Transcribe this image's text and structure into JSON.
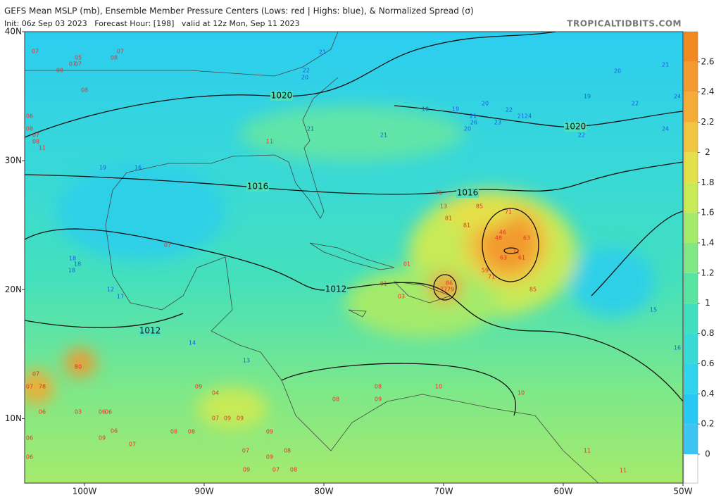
{
  "header": {
    "title": "GEFS Mean MSLP (mb), Ensemble Member Pressure Centers (Lows: red | Highs: blue), & Normalized Spread (σ)",
    "subtitle": "Init: 06z Sep 03 2023   Forecast Hour: [198]   valid at 12z Mon, Sep 11 2023",
    "brand": "TROPICALTIDBITS.COM"
  },
  "map": {
    "lonlim": [
      -105,
      -50
    ],
    "latlim": [
      5,
      40
    ],
    "lon_ticks": [
      {
        "value": -100,
        "label": "100W"
      },
      {
        "value": -90,
        "label": "90W"
      },
      {
        "value": -80,
        "label": "80W"
      },
      {
        "value": -70,
        "label": "70W"
      },
      {
        "value": -60,
        "label": "60W"
      },
      {
        "value": -50,
        "label": "50W"
      }
    ],
    "lat_ticks": [
      {
        "value": 40,
        "label": "40N"
      },
      {
        "value": 30,
        "label": "30N"
      },
      {
        "value": 20,
        "label": "20N"
      },
      {
        "value": 10,
        "label": "10N"
      }
    ],
    "isobar_labels": [
      1020,
      1020,
      1016,
      1016,
      1012,
      1012
    ],
    "low_color": "#e8302a",
    "high_color": "#1a5ce0",
    "lows": [
      "07",
      "05",
      "07",
      "07",
      "08",
      "07",
      "08",
      "08",
      "06",
      "08",
      "07",
      "08",
      "11",
      "11",
      "07",
      "76",
      "13",
      "85",
      "81",
      "81",
      "71",
      "46",
      "48",
      "63",
      "71",
      "63",
      "61",
      "59",
      "71",
      "85",
      "86",
      "77",
      "79",
      "01",
      "01",
      "03",
      "80",
      "07",
      "07",
      "78",
      "06",
      "03",
      "06",
      "06",
      "09",
      "04",
      "08",
      "08",
      "07",
      "09",
      "09",
      "09",
      "10",
      "10",
      "11",
      "11",
      "06",
      "09",
      "07",
      "09",
      "07",
      "08",
      "07",
      "09",
      "08",
      "09",
      "08",
      "08",
      "06",
      "06"
    ],
    "highs": [
      "21",
      "22",
      "20",
      "18",
      "19",
      "20",
      "21",
      "26",
      "20",
      "23",
      "22",
      "21",
      "24",
      "22",
      "20",
      "21",
      "24",
      "22",
      "19",
      "24",
      "21",
      "21",
      "19",
      "16",
      "18",
      "18",
      "18",
      "12",
      "17",
      "13",
      "14",
      "15",
      "16"
    ]
  },
  "colorbar": {
    "lim": [
      0,
      2.8
    ],
    "ticks": [
      0,
      0.2,
      0.4,
      0.6,
      0.8,
      1,
      1.2,
      1.4,
      1.6,
      1.8,
      2,
      2.2,
      2.4,
      2.6
    ],
    "colors": [
      "#3cc4f2",
      "#28c8f4",
      "#30d2ec",
      "#38dad6",
      "#40dfc0",
      "#58e5a2",
      "#80e884",
      "#a4ea6a",
      "#c8ea56",
      "#e4e04a",
      "#f0c640",
      "#f4ac36",
      "#f29a2e",
      "#f0891f"
    ]
  }
}
